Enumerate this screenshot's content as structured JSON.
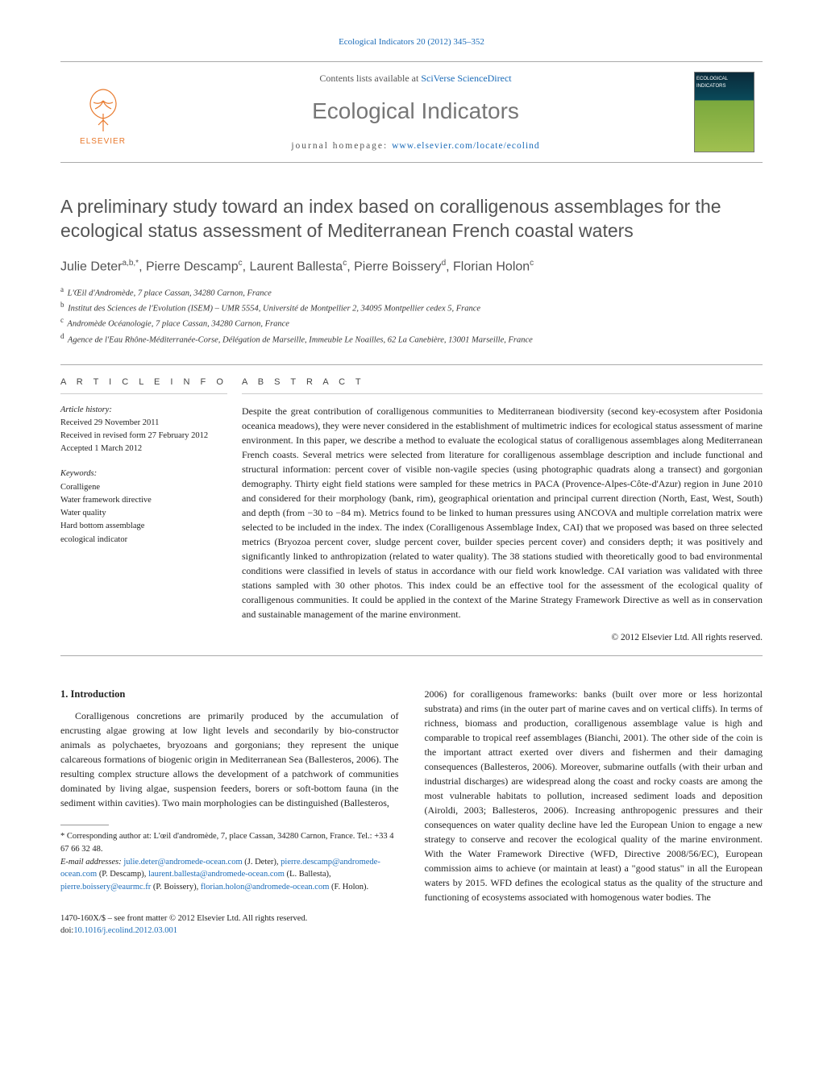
{
  "journal_ref_line": "Ecological Indicators 20 (2012) 345–352",
  "masthead": {
    "elsevier_word": "ELSEVIER",
    "contents_prefix": "Contents lists available at ",
    "contents_link": "SciVerse ScienceDirect",
    "journal_title": "Ecological Indicators",
    "homepage_prefix": "journal homepage: ",
    "homepage_url": "www.elsevier.com/locate/ecolind",
    "cover_label": "ECOLOGICAL INDICATORS"
  },
  "title": "A preliminary study toward an index based on coralligenous assemblages for the ecological status assessment of Mediterranean French coastal waters",
  "authors_html": "Julie Deter<sup>a,b,*</sup>, Pierre Descamp<sup>c</sup>, Laurent Ballesta<sup>c</sup>, Pierre Boissery<sup>d</sup>, Florian Holon<sup>c</sup>",
  "affiliations": [
    {
      "sup": "a",
      "text": "L'Œil d'Andromède, 7 place Cassan, 34280 Carnon, France"
    },
    {
      "sup": "b",
      "text": "Institut des Sciences de l'Evolution (ISEM) – UMR 5554, Université de Montpellier 2, 34095 Montpellier cedex 5, France"
    },
    {
      "sup": "c",
      "text": "Andromède Océanologie, 7 place Cassan, 34280 Carnon, France"
    },
    {
      "sup": "d",
      "text": "Agence de l'Eau Rhône-Méditerranée-Corse, Délégation de Marseille, Immeuble Le Noailles, 62 La Canebière, 13001 Marseille, France"
    }
  ],
  "article_info": {
    "head": "A R T I C L E   I N F O",
    "history_head": "Article history:",
    "received": "Received 29 November 2011",
    "revised": "Received in revised form 27 February 2012",
    "accepted": "Accepted 1 March 2012",
    "keywords_head": "Keywords:",
    "keywords": [
      "Coralligene",
      "Water framework directive",
      "Water quality",
      "Hard bottom assemblage",
      "ecological indicator"
    ]
  },
  "abstract": {
    "head": "A B S T R A C T",
    "text": "Despite the great contribution of coralligenous communities to Mediterranean biodiversity (second key-ecosystem after Posidonia oceanica meadows), they were never considered in the establishment of multimetric indices for ecological status assessment of marine environment. In this paper, we describe a method to evaluate the ecological status of coralligenous assemblages along Mediterranean French coasts. Several metrics were selected from literature for coralligenous assemblage description and include functional and structural information: percent cover of visible non-vagile species (using photographic quadrats along a transect) and gorgonian demography. Thirty eight field stations were sampled for these metrics in PACA (Provence-Alpes-Côte-d'Azur) region in June 2010 and considered for their morphology (bank, rim), geographical orientation and principal current direction (North, East, West, South) and depth (from −30 to −84 m). Metrics found to be linked to human pressures using ANCOVA and multiple correlation matrix were selected to be included in the index. The index (Coralligenous Assemblage Index, CAI) that we proposed was based on three selected metrics (Bryozoa percent cover, sludge percent cover, builder species percent cover) and considers depth; it was positively and significantly linked to anthropization (related to water quality). The 38 stations studied with theoretically good to bad environmental conditions were classified in levels of status in accordance with our field work knowledge. CAI variation was validated with three stations sampled with 30 other photos. This index could be an effective tool for the assessment of the ecological quality of coralligenous communities. It could be applied in the context of the Marine Strategy Framework Directive as well as in conservation and sustainable management of the marine environment.",
    "copyright": "© 2012 Elsevier Ltd. All rights reserved."
  },
  "body": {
    "intro_head": "1. Introduction",
    "left_p1": "Coralligenous concretions are primarily produced by the accumulation of encrusting algae growing at low light levels and secondarily by bio-constructor animals as polychaetes, bryozoans and gorgonians; they represent the unique calcareous formations of biogenic origin in Mediterranean Sea (Ballesteros, 2006). The resulting complex structure allows the development of a patchwork of communities dominated by living algae, suspension feeders, borers or soft-bottom fauna (in the sediment within cavities). Two main morphologies can be distinguished (Ballesteros,",
    "right_p1": "2006) for coralligenous frameworks: banks (built over more or less horizontal substrata) and rims (in the outer part of marine caves and on vertical cliffs). In terms of richness, biomass and production, coralligenous assemblage value is high and comparable to tropical reef assemblages (Bianchi, 2001). The other side of the coin is the important attract exerted over divers and fishermen and their damaging consequences (Ballesteros, 2006). Moreover, submarine outfalls (with their urban and industrial discharges) are widespread along the coast and rocky coasts are among the most vulnerable habitats to pollution, increased sediment loads and deposition (Airoldi, 2003; Ballesteros, 2006). Increasing anthropogenic pressures and their consequences on water quality decline have led the European Union to engage a new strategy to conserve and recover the ecological quality of the marine environment. With the Water Framework Directive (WFD, Directive 2008/56/EC), European commission aims to achieve (or maintain at least) a \"good status\" in all the European waters by 2015. WFD defines the ecological status as the quality of the structure and functioning of ecosystems associated with homogenous water bodies. The"
  },
  "footnotes": {
    "corresp": "* Corresponding author at: L'œil d'andromède, 7, place Cassan, 34280 Carnon, France. Tel.: +33 4 67 66 32 48.",
    "email_label": "E-mail addresses: ",
    "emails": [
      {
        "addr": "julie.deter@andromede-ocean.com",
        "who": " (J. Deter), "
      },
      {
        "addr": "pierre.descamp@andromede-ocean.com",
        "who": " (P. Descamp), "
      },
      {
        "addr": "laurent.ballesta@andromede-ocean.com",
        "who": " (L. Ballesta), "
      },
      {
        "addr": "pierre.boissery@eaurmc.fr",
        "who": " (P. Boissery), "
      },
      {
        "addr": "florian.holon@andromede-ocean.com",
        "who": " (F. Holon)."
      }
    ]
  },
  "doi": {
    "line1": "1470-160X/$ – see front matter © 2012 Elsevier Ltd. All rights reserved.",
    "line2_prefix": "doi:",
    "line2_link": "10.1016/j.ecolind.2012.03.001"
  },
  "colors": {
    "link": "#1a6bb8",
    "elsevier_orange": "#e8792c",
    "title_gray": "#535353",
    "journal_gray": "#767676"
  }
}
